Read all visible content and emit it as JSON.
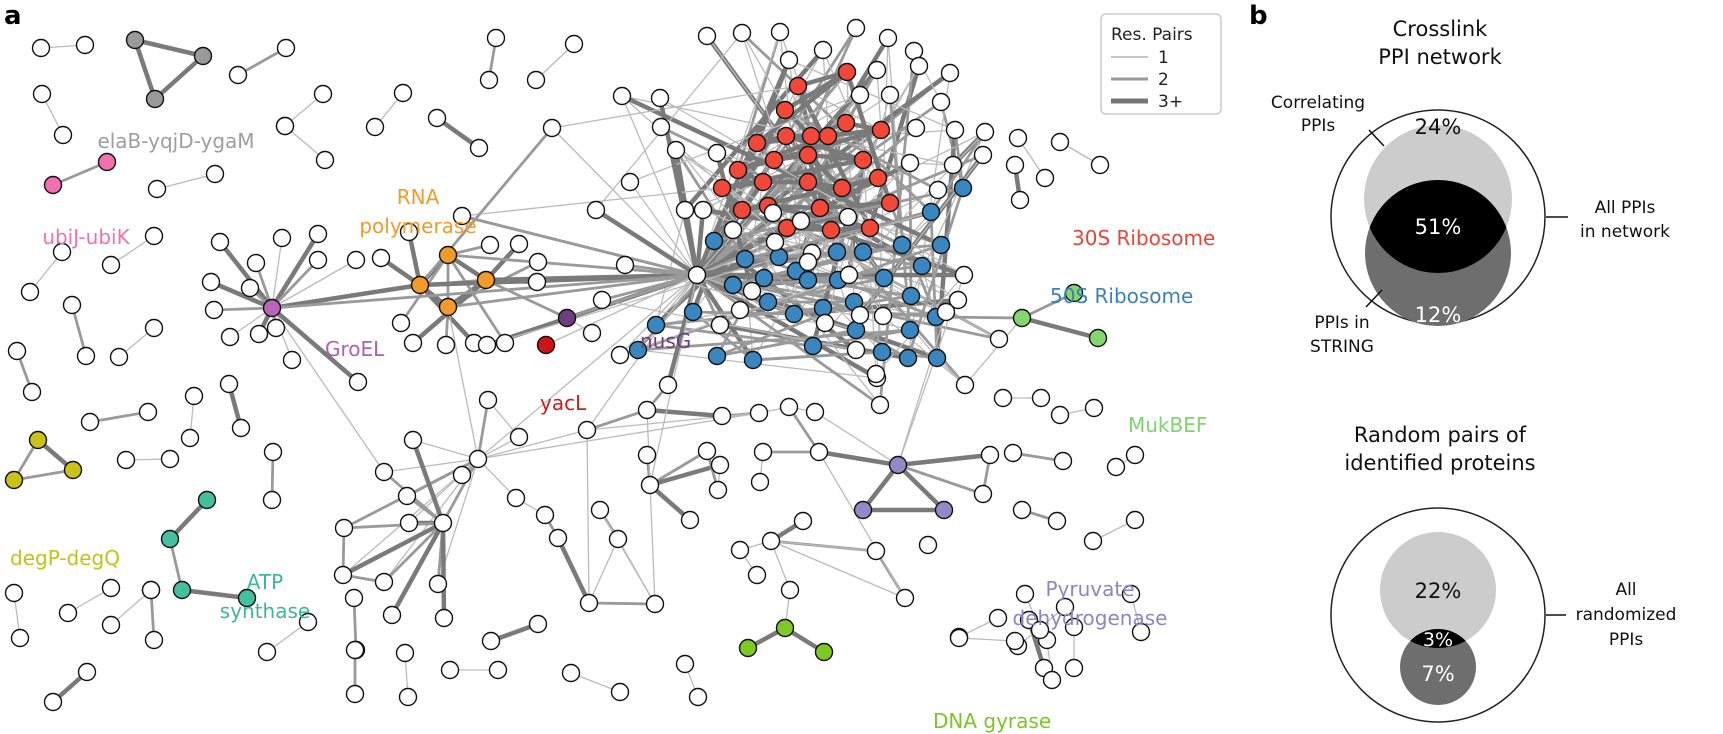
{
  "panels": {
    "a": {
      "letter": "a"
    },
    "b": {
      "letter": "b"
    }
  },
  "legend": {
    "title": "Res. Pairs",
    "items": [
      "1",
      "2",
      "3+"
    ],
    "colors": {
      "edge_light": "#b3b3b3",
      "edge_mid": "#9a9a9a",
      "edge_dark": "#777777"
    }
  },
  "complexes": [
    {
      "label": "elaB-yqjD-ygaM",
      "color": "#9e9e9e"
    },
    {
      "label": "ubiJ-ubiK",
      "color": "#ee72b0"
    },
    {
      "label": "RNA",
      "color": "#f39a2b"
    },
    {
      "label": "polymerase",
      "color": "#f39a2b"
    },
    {
      "label": "GroEL",
      "color": "#b060b0"
    },
    {
      "label": "nusG",
      "color": "#6e3f7e"
    },
    {
      "label": "yacL",
      "color": "#d01c1c"
    },
    {
      "label": "30S Ribosome",
      "color": "#e8453a"
    },
    {
      "label": "50S Ribosome",
      "color": "#3a82b6"
    },
    {
      "label": "MukBEF",
      "color": "#7fd36b"
    },
    {
      "label": "degP-degQ",
      "color": "#c2c21c"
    },
    {
      "label": "ATP",
      "color": "#3fb59a"
    },
    {
      "label": "synthase",
      "color": "#3fb59a"
    },
    {
      "label": "Pyruvate",
      "color": "#8c86c2"
    },
    {
      "label": "dehydrogenase",
      "color": "#8c86c2"
    },
    {
      "label": "DNA gyrase",
      "color": "#7ec52a"
    }
  ],
  "network_colors": {
    "ribo30": "#f2483a",
    "ribo50": "#3a86c0",
    "rnap": "#f39a2b",
    "groel": "#b964b8",
    "nusg": "#6e3f7e",
    "yacl": "#cc1515",
    "elab": "#9a9a9a",
    "ubij": "#f070b0",
    "mukbef": "#86d670",
    "degp": "#c8c21a",
    "atp": "#44bfa0",
    "pdh": "#9488c8",
    "gyrase": "#80c825",
    "white": "#ffffff"
  },
  "venn_network": {
    "title_line1": "Crosslink",
    "title_line2": "PPI network",
    "correlating_line1": "Correlating",
    "correlating_line2": "PPIs",
    "all_line1": "All PPIs",
    "all_line2": "in network",
    "string_line1": "PPIs in",
    "string_line2": "STRING",
    "pct_correlating": "24%",
    "pct_overlap": "51%",
    "pct_string": "12%",
    "colors": {
      "correlating": "#cccccc",
      "overlap": "#000000",
      "string": "#6e6e6e"
    }
  },
  "venn_random": {
    "title_line1": "Random pairs of",
    "title_line2": "identified proteins",
    "all_line1": "All",
    "all_line2": "randomized",
    "all_line3": "PPIs",
    "pct_correlating": "22%",
    "pct_overlap": "3%",
    "pct_string": "7%"
  }
}
